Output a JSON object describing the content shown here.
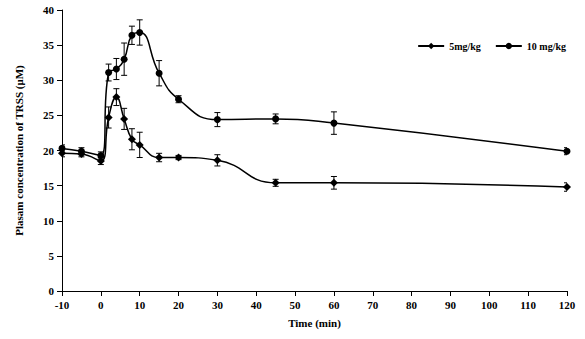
{
  "chart_data": {
    "type": "line",
    "x_label": "Time (min)",
    "y_label": "Plasam concentration of TRSS (μM)",
    "x": [
      -10,
      -5,
      0,
      2,
      4,
      6,
      8,
      10,
      15,
      20,
      30,
      45,
      60,
      120
    ],
    "series": [
      {
        "name": "5mg/kg",
        "color": "#000000",
        "marker": "diamond",
        "line_style": "solid",
        "values": [
          19.6,
          19.5,
          18.5,
          24.7,
          27.6,
          24.5,
          21.6,
          20.8,
          19.0,
          19.0,
          18.6,
          15.4,
          15.4,
          14.8
        ],
        "error": [
          0.5,
          0.4,
          0.5,
          1.5,
          1.2,
          1.5,
          1.5,
          1.8,
          0.6,
          0.3,
          0.8,
          0.5,
          0.9,
          0.6
        ]
      },
      {
        "name": "10 mg/kg",
        "color": "#000000",
        "marker": "circle",
        "line_style": "solid",
        "values": [
          20.3,
          19.9,
          19.3,
          31.1,
          31.6,
          33.0,
          36.4,
          36.8,
          31.0,
          27.3,
          24.4,
          24.5,
          23.9,
          19.9
        ],
        "error": [
          0.5,
          0.5,
          0.5,
          1.2,
          1.5,
          2.3,
          1.3,
          1.8,
          1.8,
          0.5,
          1.0,
          0.7,
          1.6,
          0.5
        ]
      }
    ],
    "xlim": [
      -10,
      120
    ],
    "xticks": [
      -10,
      0,
      10,
      20,
      30,
      40,
      50,
      60,
      70,
      80,
      90,
      100,
      110,
      120
    ],
    "ylim": [
      0,
      40
    ],
    "yticks": [
      0,
      5,
      10,
      15,
      20,
      25,
      30,
      35,
      40
    ],
    "grid": false,
    "legend": "upper right"
  }
}
